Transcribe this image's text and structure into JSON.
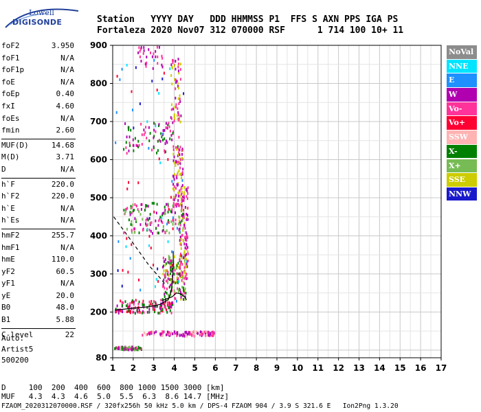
{
  "logo": {
    "line1": "Lowell",
    "line2": "DIGISONDE"
  },
  "header": {
    "line1": "Station   YYYY DAY   DDD HHMMSS P1  FFS S AXN PPS IGA PS",
    "line2": "Fortaleza 2020 Nov07 312 070000 RSF      1 714 100 10+ 11"
  },
  "params": [
    {
      "name": "foF2",
      "value": "3.950"
    },
    {
      "name": "foF1",
      "value": "N/A"
    },
    {
      "name": "foF1p",
      "value": "N/A"
    },
    {
      "name": "foE",
      "value": "N/A"
    },
    {
      "name": "foEp",
      "value": "0.40"
    },
    {
      "name": "fxI",
      "value": "4.60"
    },
    {
      "name": "foEs",
      "value": "N/A"
    },
    {
      "name": "fmin",
      "value": "2.60"
    },
    {
      "name": "MUF(D)",
      "value": "14.68"
    },
    {
      "name": "M(D)",
      "value": "3.71"
    },
    {
      "name": "D",
      "value": "N/A"
    },
    {
      "name": "h`F",
      "value": "220.0"
    },
    {
      "name": "h`F2",
      "value": "220.0"
    },
    {
      "name": "h`E",
      "value": "N/A"
    },
    {
      "name": "h`Es",
      "value": "N/A"
    },
    {
      "name": "hmF2",
      "value": "255.7"
    },
    {
      "name": "hmF1",
      "value": "N/A"
    },
    {
      "name": "hmE",
      "value": "110.0"
    },
    {
      "name": "yF2",
      "value": "60.5"
    },
    {
      "name": "yF1",
      "value": "N/A"
    },
    {
      "name": "yE",
      "value": "20.0"
    },
    {
      "name": "B0",
      "value": "48.0"
    },
    {
      "name": "B1",
      "value": "5.88"
    },
    {
      "name": "C-level",
      "value": "22"
    }
  ],
  "auto": {
    "line1": "Auto:",
    "line2": "Artist5",
    "line3": "500200"
  },
  "footer": {
    "d_line": "D     100  200  400  600  800 1000 1500 3000 [km]",
    "muf_line": "MUF   4.3  4.3  4.6  5.0  5.5  6.3  8.6 14.7 [MHz]",
    "file_line": "FZAOM_2020312070000.RSF / 320fx256h 50 kHz 5.0 km / DPS-4 FZAOM 904 / 3.9 S 321.6 E   Ion2Png 1.3.20"
  },
  "legend": [
    {
      "label": "NoVal",
      "color": "#8c8c8c"
    },
    {
      "label": "NNE",
      "color": "#00e5ff"
    },
    {
      "label": "E",
      "color": "#1e90ff"
    },
    {
      "label": "W",
      "color": "#b000b0"
    },
    {
      "label": "Vo-",
      "color": "#ff3399"
    },
    {
      "label": "Vo+",
      "color": "#ff0033"
    },
    {
      "label": "SSW",
      "color": "#ffb3b3"
    },
    {
      "label": "X-",
      "color": "#008000"
    },
    {
      "label": "X+",
      "color": "#77bb55"
    },
    {
      "label": "SSE",
      "color": "#cccc00"
    },
    {
      "label": "NNW",
      "color": "#1a1acc"
    }
  ],
  "chart_data": {
    "type": "scatter",
    "xlim": [
      1,
      17
    ],
    "ylim": [
      80,
      900
    ],
    "x_ticks": [
      1,
      2,
      3,
      4,
      5,
      6,
      7,
      8,
      9,
      10,
      11,
      12,
      13,
      14,
      15,
      16,
      17
    ],
    "y_ticks": [
      80,
      200,
      300,
      400,
      500,
      600,
      700,
      800,
      900
    ],
    "grid": true,
    "legend_position": "right",
    "traces": [
      {
        "kind": "profile-solid",
        "color": "#000000",
        "points": [
          [
            1.1,
            205
          ],
          [
            2.0,
            210
          ],
          [
            2.8,
            214
          ],
          [
            3.3,
            220
          ],
          [
            3.7,
            232
          ],
          [
            3.85,
            255
          ],
          [
            3.92,
            285
          ],
          [
            3.95,
            320
          ],
          [
            3.95,
            360
          ]
        ]
      },
      {
        "kind": "profile-solid",
        "color": "#000000",
        "points": [
          [
            3.4,
            230
          ],
          [
            3.9,
            240
          ],
          [
            4.1,
            250
          ],
          [
            4.3,
            248
          ],
          [
            4.5,
            240
          ],
          [
            4.6,
            232
          ]
        ]
      },
      {
        "kind": "profile-dashed",
        "color": "#000000",
        "points": [
          [
            1.05,
            450
          ],
          [
            2.0,
            380
          ],
          [
            2.8,
            320
          ],
          [
            3.3,
            290
          ],
          [
            3.6,
            270
          ]
        ]
      }
    ],
    "echo_groups": [
      {
        "label": "F1 trace",
        "xr": [
          1.1,
          3.9
        ],
        "yr": [
          200,
          235
        ],
        "colors": [
          "#ff0033",
          "#ff3399",
          "#008000",
          "#b000b0"
        ],
        "n": 140
      },
      {
        "label": "F hop 1 rise",
        "xr": [
          3.4,
          4.6
        ],
        "yr": [
          235,
          350
        ],
        "colors": [
          "#008000",
          "#b000b0",
          "#ff3399",
          "#77bb55",
          "#cccc00"
        ],
        "n": 160
      },
      {
        "label": "F hop 1 up",
        "xr": [
          4.2,
          4.65
        ],
        "yr": [
          290,
          540
        ],
        "colors": [
          "#b000b0",
          "#ff3399",
          "#cccc00"
        ],
        "n": 110
      },
      {
        "label": "hop 2",
        "xr": [
          1.5,
          4.4
        ],
        "yr": [
          410,
          490
        ],
        "colors": [
          "#ff3399",
          "#008000",
          "#b000b0",
          "#77bb55"
        ],
        "n": 130
      },
      {
        "label": "hop 2 up",
        "xr": [
          3.9,
          4.4
        ],
        "yr": [
          480,
          640
        ],
        "colors": [
          "#b000b0",
          "#cccc00",
          "#ff3399"
        ],
        "n": 90
      },
      {
        "label": "hop 3",
        "xr": [
          1.5,
          4.2
        ],
        "yr": [
          620,
          700
        ],
        "colors": [
          "#ff3399",
          "#008000",
          "#b000b0"
        ],
        "n": 80
      },
      {
        "label": "hop 3 up",
        "xr": [
          3.8,
          4.3
        ],
        "yr": [
          700,
          870
        ],
        "colors": [
          "#b000b0",
          "#ff3399",
          "#cccc00"
        ],
        "n": 60
      },
      {
        "label": "hop 4",
        "xr": [
          2.2,
          3.4
        ],
        "yr": [
          840,
          900
        ],
        "colors": [
          "#ff3399",
          "#b000b0"
        ],
        "n": 30
      },
      {
        "label": "Es band",
        "xr": [
          2.4,
          6.0
        ],
        "yr": [
          140,
          152
        ],
        "colors": [
          "#b000b0",
          "#ff3399",
          "#ffb3b3"
        ],
        "n": 120
      },
      {
        "label": "low band",
        "xr": [
          1.05,
          2.4
        ],
        "yr": [
          104,
          112
        ],
        "colors": [
          "#b000b0",
          "#008000",
          "#77bb55",
          "#ff3399"
        ],
        "n": 70
      },
      {
        "label": "scattered",
        "xr": [
          1.1,
          4.6
        ],
        "yr": [
          200,
          880
        ],
        "colors": [
          "#1e90ff",
          "#00e5ff",
          "#1a1acc",
          "#ff0033"
        ],
        "n": 70
      }
    ]
  }
}
